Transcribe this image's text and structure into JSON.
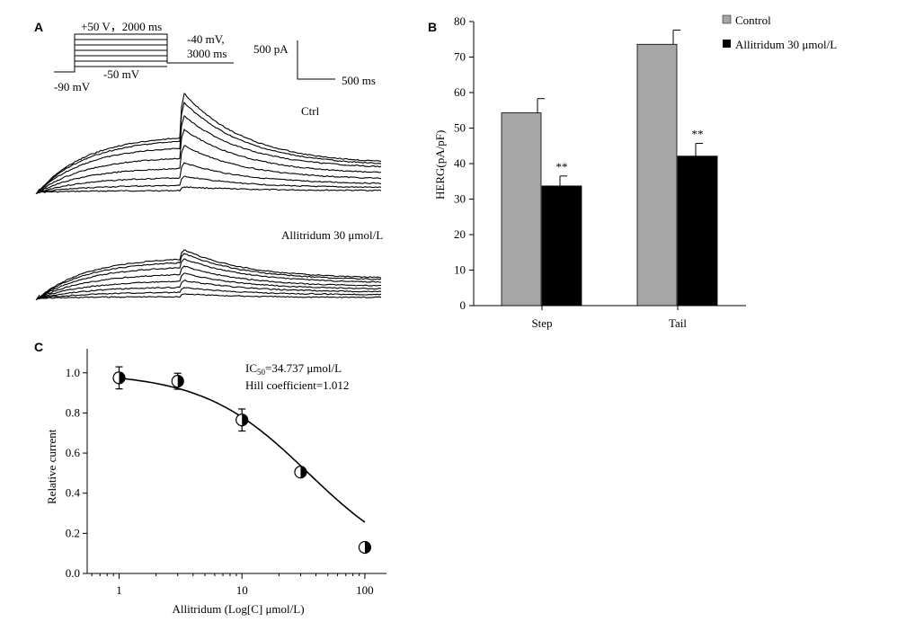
{
  "panels": {
    "a_letter": "A",
    "b_letter": "B",
    "c_letter": "C"
  },
  "panel_a": {
    "protocol": {
      "step_label": "+50 V，2000 ms",
      "tail_label_1": "-40 mV,",
      "tail_label_2": "3000 ms",
      "step_low_label": "-50 mV",
      "hold_label": "-90 mV"
    },
    "scale_bar": {
      "current": "500 pA",
      "time": "500 ms"
    },
    "ctrl_label": "Ctrl",
    "drug_label": "Allitridum 30 μmol/L"
  },
  "chart_data": [
    {
      "type": "bar",
      "ylabel": "HERG(pA/pF)",
      "ylim": [
        0,
        80
      ],
      "yticks": [
        0,
        10,
        20,
        30,
        40,
        50,
        60,
        70,
        80
      ],
      "categories": [
        "Step",
        "Tail"
      ],
      "series": [
        {
          "name": "Control",
          "values": [
            54.3,
            73.6
          ],
          "errors": [
            4.0,
            4.0
          ],
          "color": "#a6a6a6"
        },
        {
          "name": "Allitridum 30 μmol/L",
          "values": [
            33.7,
            42.1
          ],
          "errors": [
            2.8,
            3.6
          ],
          "color": "#000000"
        }
      ],
      "significance": [
        "**",
        "**"
      ],
      "legend": "top-right"
    },
    {
      "type": "scatter",
      "xlabel": "Allitridum (Log[C] μmol/L)",
      "ylabel": "Relative current",
      "xscale": "log",
      "xlim": [
        0.55,
        150
      ],
      "xticks": [
        1,
        10,
        100
      ],
      "ylim": [
        0,
        1.12
      ],
      "yticks": [
        "0.0",
        "0.2",
        "0.4",
        "0.6",
        "0.8",
        "1.0"
      ],
      "points": [
        {
          "x": 1,
          "y": 0.975,
          "err": 0.055
        },
        {
          "x": 3,
          "y": 0.958,
          "err": 0.04
        },
        {
          "x": 10,
          "y": 0.765,
          "err": 0.055
        },
        {
          "x": 30,
          "y": 0.505,
          "err": 0.015
        },
        {
          "x": 100,
          "y": 0.13,
          "err": 0.012
        }
      ],
      "fit": {
        "ic50": 34.737,
        "hill": 1.012
      },
      "annotation": {
        "ic50_prefix": "IC",
        "ic50_sub": "50",
        "ic50_value": "=34.737 μmol/L",
        "hill_text": "Hill coefficient=1.012"
      }
    }
  ]
}
